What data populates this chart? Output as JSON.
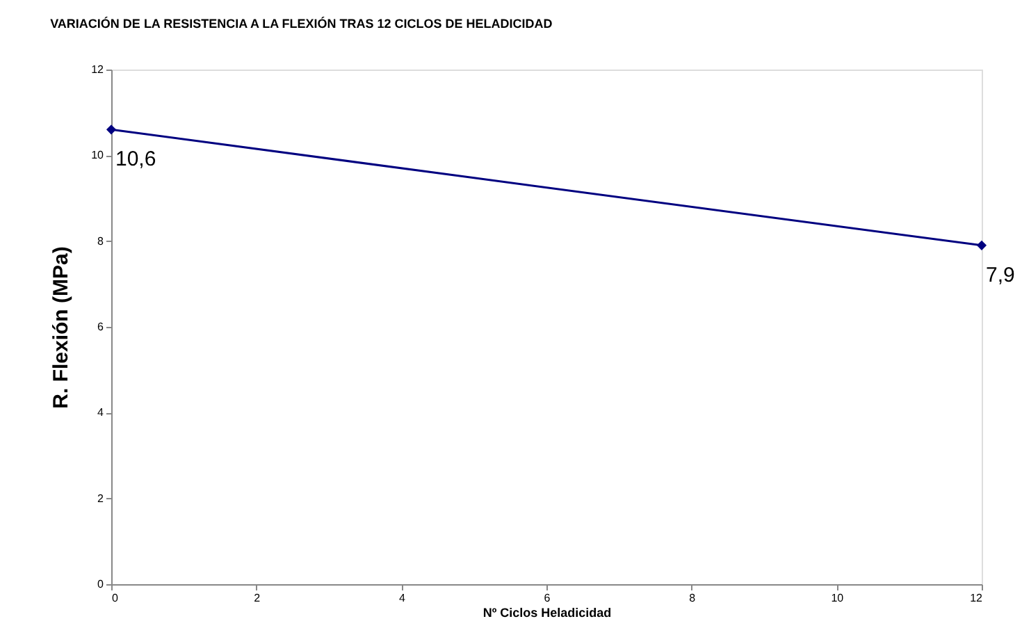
{
  "chart_data": {
    "type": "line",
    "title": "VARIACIÓN DE LA RESISTENCIA A LA FLEXIÓN TRAS 12 CICLOS DE HELADICIDAD",
    "xlabel": "Nº Ciclos Heladicidad",
    "ylabel": "R. Flexión (MPa)",
    "x": [
      0,
      12
    ],
    "series": [
      {
        "color": "#000080",
        "values": [
          10.6,
          7.9
        ],
        "value_labels": [
          "10,6",
          "7,9"
        ]
      }
    ],
    "xlim": [
      0,
      12
    ],
    "xticks": [
      0,
      2,
      4,
      6,
      8,
      10,
      12
    ],
    "ylim": [
      0,
      12
    ],
    "yticks": [
      0,
      2,
      4,
      6,
      8,
      10,
      12
    ],
    "grid": false,
    "legend": false,
    "marker": "diamond",
    "line_style": "solid"
  }
}
